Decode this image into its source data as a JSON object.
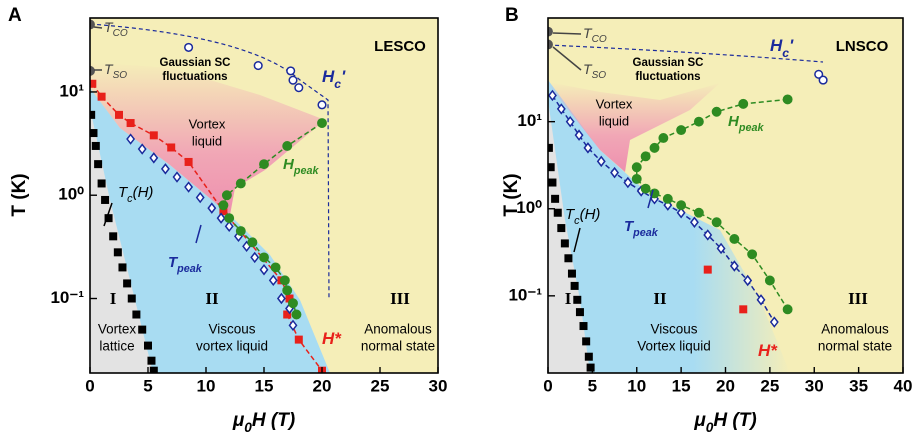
{
  "chart_data": [
    {
      "type": "scatter",
      "panel": "A",
      "sample": "LESCO",
      "xlabel": [
        "μ",
        "0",
        "H (T)"
      ],
      "ylabel": "T (K)",
      "xlim": [
        0,
        30
      ],
      "xticks": [
        0,
        5,
        10,
        15,
        20,
        25,
        30
      ],
      "ylim": [
        0.019,
        52
      ],
      "ylog": true,
      "yticks": [
        {
          "value": 0.1,
          "label": "10⁻¹"
        },
        {
          "value": 1,
          "label": "10⁰"
        },
        {
          "value": 10,
          "label": "10¹"
        }
      ],
      "gaussian": [
        "Gaussian SC",
        "fluctuations"
      ],
      "vortex_liquid": [
        "Vortex",
        "liquid"
      ],
      "curve_labels": {
        "tco": [
          "T",
          "CO"
        ],
        "tso": [
          "T",
          "SO"
        ],
        "tc": [
          "T",
          "c",
          "(H)"
        ],
        "tpeak": [
          "T",
          "peak"
        ],
        "hpeak": [
          "H",
          "peak"
        ],
        "hc": [
          "H",
          "c",
          "'"
        ],
        "hstar": [
          "H*"
        ]
      },
      "regions": [
        {
          "numeral": "I",
          "name": [
            "Vortex",
            "lattice"
          ]
        },
        {
          "numeral": "II",
          "name": [
            "Viscous",
            "vortex liquid"
          ]
        },
        {
          "numeral": "III",
          "name": [
            "Anomalous",
            "normal state"
          ]
        }
      ],
      "series": [
        {
          "marker": "circle",
          "filled": true,
          "color": "#555555",
          "x": [
            0,
            0
          ],
          "values": [
            45,
            16
          ]
        },
        {
          "marker": "square",
          "filled": true,
          "color": "#000000",
          "x": [
            0.1,
            0.3,
            0.5,
            0.7,
            1,
            1.3,
            1.6,
            2,
            2.4,
            2.8,
            3.2,
            3.6,
            4,
            4.5,
            5,
            5.3,
            5.5
          ],
          "values": [
            6,
            4,
            3,
            2,
            1.3,
            0.9,
            0.6,
            0.4,
            0.28,
            0.2,
            0.14,
            0.1,
            0.07,
            0.05,
            0.035,
            0.025,
            0.02
          ]
        },
        {
          "marker": "square",
          "filled": true,
          "color": "#e8211b",
          "line": "dashed",
          "x": [
            0.2,
            1,
            2.5,
            3.5,
            5.5,
            7,
            8.5,
            11.5,
            16.5,
            17.2,
            17,
            18,
            20
          ],
          "values": [
            12,
            9,
            6,
            5,
            3.8,
            2.9,
            2.1,
            0.7,
            0.15,
            0.1,
            0.07,
            0.04,
            0.02
          ]
        },
        {
          "marker": "diamond",
          "filled": false,
          "color": "#1a2a9c",
          "x": [
            3.5,
            4.5,
            5.5,
            6.5,
            7.5,
            8.5,
            9.5,
            10.5,
            11.3,
            12,
            12.8,
            13.5,
            14.2,
            15,
            15.8,
            16.5,
            17.2,
            17.5
          ],
          "values": [
            3.5,
            2.8,
            2.3,
            1.8,
            1.5,
            1.2,
            0.95,
            0.75,
            0.6,
            0.5,
            0.4,
            0.32,
            0.25,
            0.19,
            0.15,
            0.1,
            0.08,
            0.055
          ]
        },
        {
          "marker": "circle",
          "filled": true,
          "color": "#2e8b22",
          "line": "dashed",
          "x": [
            20,
            17,
            15,
            13,
            11.8,
            11.5,
            12,
            13,
            14,
            15,
            16,
            16.8,
            17,
            17.5,
            17.8
          ],
          "values": [
            5,
            3,
            2,
            1.3,
            1,
            0.8,
            0.6,
            0.45,
            0.35,
            0.25,
            0.2,
            0.15,
            0.12,
            0.09,
            0.07
          ]
        },
        {
          "marker": "circle",
          "filled": false,
          "color": "#1a2a9c",
          "x": [
            8.5,
            14.5,
            17.3,
            17.5,
            18,
            20
          ],
          "values": [
            27,
            18,
            16,
            13,
            11,
            7.5
          ]
        }
      ]
    },
    {
      "type": "scatter",
      "panel": "B",
      "sample": "LNSCO",
      "xlabel": [
        "μ",
        "0",
        "H (T)"
      ],
      "ylabel": "T (K)",
      "xlim": [
        0,
        40
      ],
      "xticks": [
        0,
        5,
        10,
        15,
        20,
        25,
        30,
        35,
        40
      ],
      "ylim": [
        0.013,
        155
      ],
      "ylog": true,
      "yticks": [
        {
          "value": 0.1,
          "label": "10⁻¹"
        },
        {
          "value": 1,
          "label": "10⁰"
        },
        {
          "value": 10,
          "label": "10¹"
        }
      ],
      "gaussian": [
        "Gaussian SC",
        "fluctuations"
      ],
      "vortex_liquid": [
        "Vortex",
        "liquid"
      ],
      "curve_labels": {
        "tco": [
          "T",
          "CO"
        ],
        "tso": [
          "T",
          "SO"
        ],
        "tc": [
          "T",
          "c",
          "(H)"
        ],
        "tpeak": [
          "T",
          "peak"
        ],
        "hpeak": [
          "H",
          "peak"
        ],
        "hc": [
          "H",
          "c",
          "'"
        ],
        "hstar": [
          "H*"
        ]
      },
      "regions": [
        {
          "numeral": "I"
        },
        {
          "numeral": "II",
          "name": [
            "Viscous",
            "Vortex liquid"
          ]
        },
        {
          "numeral": "III",
          "name": [
            "Anomalous",
            "normal state"
          ]
        }
      ],
      "series": [
        {
          "marker": "circle",
          "filled": true,
          "color": "#555555",
          "x": [
            0,
            0
          ],
          "values": [
            108,
            77
          ]
        },
        {
          "marker": "square",
          "filled": true,
          "color": "#000000",
          "x": [
            0.1,
            0.3,
            0.5,
            0.8,
            1.1,
            1.5,
            1.9,
            2.3,
            2.7,
            3,
            3.3,
            3.6,
            4,
            4.3,
            4.6,
            4.8
          ],
          "values": [
            5,
            3,
            2,
            1.3,
            0.9,
            0.6,
            0.4,
            0.27,
            0.18,
            0.13,
            0.09,
            0.065,
            0.045,
            0.03,
            0.02,
            0.015
          ]
        },
        {
          "marker": "diamond",
          "filled": false,
          "color": "#1a2a9c",
          "line": "dashed",
          "x": [
            0.5,
            1.5,
            2.5,
            3.5,
            4.5,
            6,
            7.5,
            9,
            10.5,
            12,
            13.5,
            15,
            16.5,
            18,
            19.5,
            21,
            22.5,
            24,
            25.5
          ],
          "values": [
            20,
            14,
            10,
            7,
            5,
            3.5,
            2.6,
            2,
            1.6,
            1.3,
            1.1,
            0.9,
            0.7,
            0.5,
            0.35,
            0.22,
            0.15,
            0.09,
            0.05
          ]
        },
        {
          "marker": "circle",
          "filled": true,
          "color": "#2e8b22",
          "line": "dashed",
          "x": [
            27,
            22,
            19,
            17,
            15,
            13,
            12,
            11,
            10,
            10,
            11,
            12,
            13.5,
            15,
            17,
            19,
            21,
            23,
            25,
            27
          ],
          "values": [
            18,
            16,
            13,
            10,
            8,
            6.5,
            5,
            4,
            3,
            2.2,
            1.7,
            1.5,
            1.3,
            1.1,
            0.9,
            0.7,
            0.45,
            0.3,
            0.15,
            0.07
          ]
        },
        {
          "marker": "square",
          "filled": true,
          "color": "#e8211b",
          "x": [
            18,
            22
          ],
          "values": [
            0.2,
            0.07
          ]
        },
        {
          "marker": "circle",
          "filled": false,
          "color": "#1a2a9c",
          "x": [
            30.5,
            31
          ],
          "values": [
            35,
            30
          ]
        }
      ]
    }
  ]
}
